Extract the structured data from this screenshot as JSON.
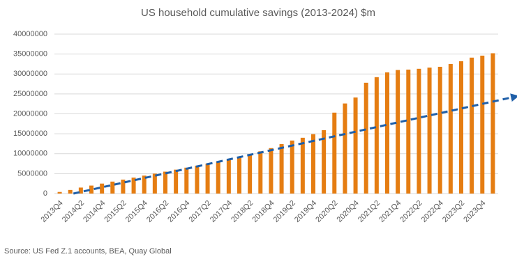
{
  "chart_data": {
    "type": "bar",
    "title": "US household cumulative savings (2013-2024) $m",
    "source": "Source: US Fed Z.1 accounts, BEA, Quay Global",
    "categories": [
      "2013Q4",
      null,
      "2014Q2",
      null,
      "2014Q4",
      null,
      "2015Q2",
      null,
      "2015Q4",
      null,
      "2016Q2",
      null,
      "2016Q4",
      null,
      "2017Q2",
      null,
      "2017Q4",
      null,
      "2018Q2",
      null,
      "2018Q4",
      null,
      "2019Q2",
      null,
      "2019Q4",
      null,
      "2020Q2",
      null,
      "2020Q4",
      null,
      "2021Q2",
      null,
      "2021Q4",
      null,
      "2022Q2",
      null,
      "2022Q4",
      null,
      "2023Q2",
      null,
      "2023Q4",
      null
    ],
    "values": [
      400000,
      900000,
      1500000,
      2000000,
      2500000,
      3000000,
      3500000,
      4000000,
      4500000,
      5000000,
      5500000,
      6000000,
      6500000,
      7000000,
      7500000,
      8000000,
      8600000,
      9200000,
      9900000,
      10600000,
      11400000,
      12400000,
      13300000,
      14000000,
      14900000,
      15900000,
      20300000,
      22600000,
      24100000,
      27800000,
      29200000,
      30400000,
      31000000,
      31100000,
      31300000,
      31600000,
      31800000,
      32500000,
      33200000,
      34100000,
      34600000,
      35200000
    ],
    "color": "#e57d12",
    "trend": {
      "color": "#1f5fa8",
      "x": [
        1.3,
        43.1
      ],
      "values": [
        0,
        24300000
      ]
    },
    "ylim": [
      0,
      40000000
    ],
    "yticks": [
      0,
      5000000,
      10000000,
      15000000,
      20000000,
      25000000,
      30000000,
      35000000,
      40000000
    ],
    "grid": true
  }
}
